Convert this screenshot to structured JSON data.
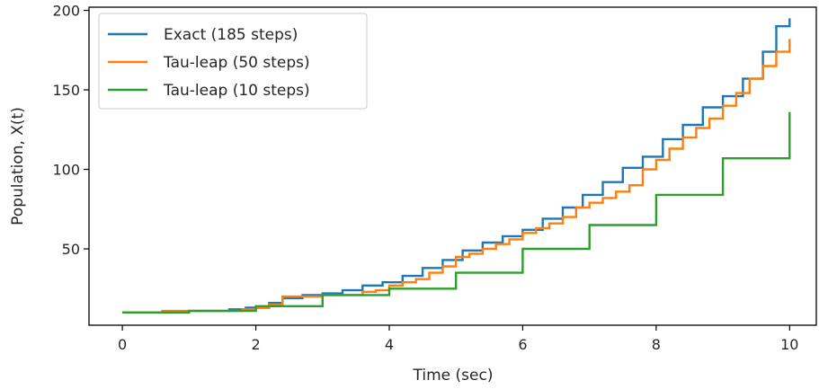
{
  "chart_data": {
    "type": "line",
    "title": "",
    "xlabel": "Time (sec)",
    "ylabel": "Population, X(t)",
    "xlim": [
      -0.5,
      10.4
    ],
    "ylim": [
      2,
      202
    ],
    "xticks": [
      0,
      2,
      4,
      6,
      8,
      10
    ],
    "yticks": [
      50,
      100,
      150,
      200
    ],
    "grid": false,
    "legend": "top-left",
    "series": [
      {
        "name": "Exact (185 steps)",
        "color": "#1f77b4",
        "step": true,
        "x": [
          0,
          1.0,
          1.6,
          1.85,
          2.2,
          2.4,
          2.7,
          3.0,
          3.3,
          3.6,
          3.9,
          4.2,
          4.5,
          4.8,
          5.1,
          5.4,
          5.7,
          6.0,
          6.3,
          6.6,
          6.9,
          7.2,
          7.5,
          7.8,
          8.1,
          8.4,
          8.7,
          9.0,
          9.3,
          9.6,
          9.8,
          10.0
        ],
        "y": [
          10,
          11,
          12,
          13,
          16,
          19,
          21,
          22,
          24,
          27,
          29,
          33,
          38,
          43,
          49,
          54,
          58,
          62,
          69,
          76,
          84,
          92,
          101,
          108,
          119,
          128,
          139,
          146,
          157,
          174,
          190,
          195
        ]
      },
      {
        "name": "Tau-leap (50 steps)",
        "color": "#ff7f0e",
        "step": true,
        "x": [
          0,
          0.6,
          1.0,
          1.4,
          1.8,
          2.0,
          2.2,
          2.4,
          2.6,
          3.0,
          3.2,
          3.6,
          3.8,
          4.0,
          4.2,
          4.4,
          4.6,
          4.8,
          5.0,
          5.2,
          5.4,
          5.6,
          5.8,
          6.0,
          6.2,
          6.4,
          6.6,
          6.8,
          7.0,
          7.2,
          7.4,
          7.6,
          7.8,
          8.0,
          8.2,
          8.4,
          8.6,
          8.8,
          9.0,
          9.2,
          9.4,
          9.6,
          9.8,
          10.0
        ],
        "y": [
          10,
          11,
          11,
          11,
          12,
          13,
          15,
          20,
          20,
          21,
          21,
          23,
          24,
          27,
          29,
          31,
          35,
          39,
          45,
          47,
          50,
          53,
          56,
          60,
          63,
          66,
          70,
          76,
          79,
          82,
          86,
          90,
          100,
          106,
          113,
          120,
          126,
          132,
          140,
          148,
          157,
          165,
          174,
          182
        ]
      },
      {
        "name": "Tau-leap (10 steps)",
        "color": "#2ca02c",
        "step": true,
        "x": [
          0,
          1,
          2,
          3,
          4,
          5,
          6,
          7,
          8,
          9,
          10
        ],
        "y": [
          10,
          11,
          14,
          21,
          25,
          35,
          50,
          65,
          84,
          107,
          136
        ]
      }
    ]
  }
}
